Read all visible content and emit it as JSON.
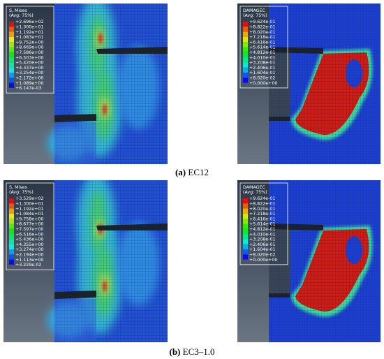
{
  "panels": [
    {
      "legend_title": "S, Mises",
      "legend_subtitle": "(Avg: 75%)",
      "legend_values": [
        "+2.696e+02",
        "+1.300e+01",
        "+1.192e+01",
        "+1.083e+01",
        "+9.752e+00",
        "+8.669e+00",
        "+7.586e+00",
        "+6.503e+00",
        "+5.420e+00",
        "+4.337e+00",
        "+3.254e+00",
        "+2.172e+00",
        "+1.089e+00",
        "+6.147e-03"
      ]
    },
    {
      "legend_title": "DAMAGEC",
      "legend_subtitle": "(Avg: 75%)",
      "legend_values": [
        "+9.624e-01",
        "+8.822e-01",
        "+8.020e-01",
        "+7.218e-01",
        "+6.416e-01",
        "+5.614e-01",
        "+4.812e-01",
        "+4.010e-01",
        "+3.208e-01",
        "+2.406e-01",
        "+1.604e-01",
        "+8.020e-02",
        "+0.000e+00"
      ]
    },
    {
      "legend_title": "S, Mises",
      "legend_subtitle": "(Avg: 75%)",
      "legend_values": [
        "+3.529e+02",
        "+1.300e+01",
        "+1.192e+01",
        "+1.084e+01",
        "+9.758e+00",
        "+8.677e+00",
        "+7.597e+00",
        "+6.516e+00",
        "+5.436e+00",
        "+4.355e+00",
        "+3.274e+00",
        "+2.194e+00",
        "+1.113e+00",
        "+3.229e-02"
      ]
    },
    {
      "legend_title": "DAMAGEC",
      "legend_subtitle": "(Avg: 75%)",
      "legend_values": [
        "+9.624e-01",
        "+8.822e-01",
        "+8.020e-01",
        "+7.218e-01",
        "+6.416e-01",
        "+5.614e-01",
        "+4.812e-01",
        "+4.010e-01",
        "+3.208e-01",
        "+2.406e-01",
        "+1.604e-01",
        "+8.020e-02",
        "+0.000e+00"
      ]
    }
  ],
  "captions": [
    {
      "label": "(a)",
      "text": "EC12"
    },
    {
      "label": "(b)",
      "text": "EC3–1.0"
    }
  ]
}
